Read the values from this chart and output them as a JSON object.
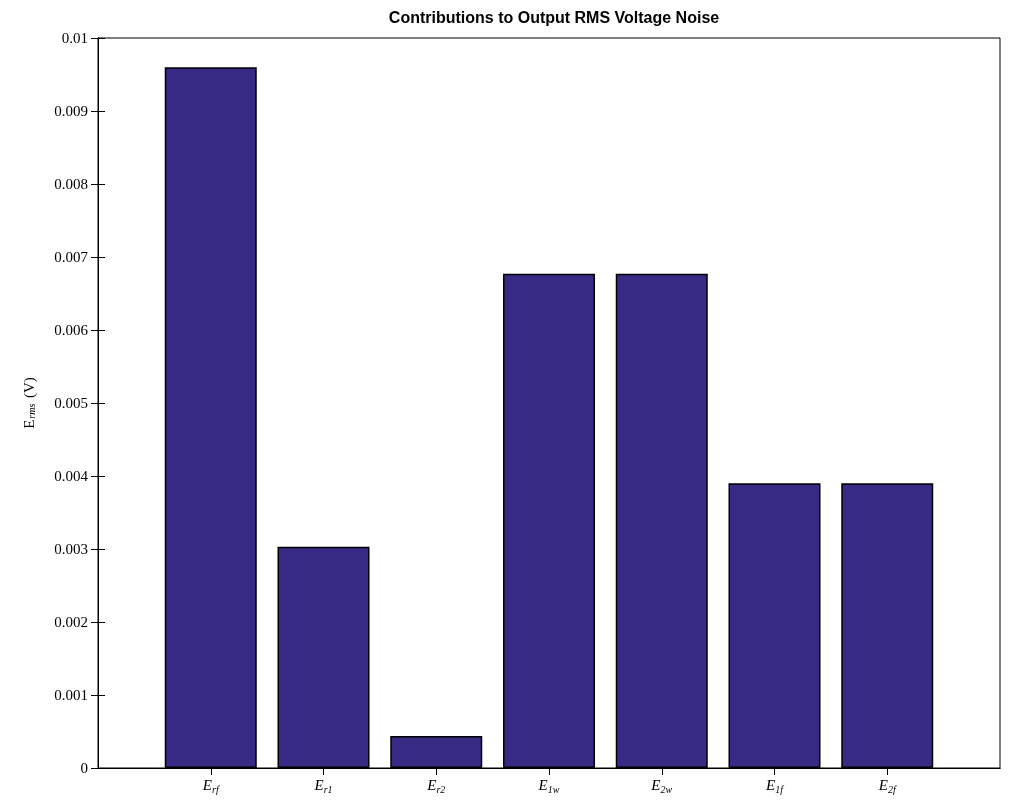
{
  "chart_data": {
    "type": "bar",
    "title": "Contributions to Output RMS Voltage Noise",
    "ylabel": "E$_{rms}$ (V)",
    "categories": [
      "E$_{rf}$",
      "E$_{r1}$",
      "E$_{r2}$",
      "E$_{1w}$",
      "E$_{2w}$",
      "E$_{1f}$",
      "E$_{2f}$"
    ],
    "values": [
      0.0096,
      0.00303,
      0.00044,
      0.00677,
      0.00677,
      0.0039,
      0.0039
    ],
    "color": "#362a84",
    "ylim": [
      0,
      0.01
    ],
    "yticks": [
      0,
      0.001,
      0.002,
      0.003,
      0.004,
      0.005,
      0.006,
      0.007,
      0.008,
      0.009,
      0.01
    ],
    "grid": false
  }
}
